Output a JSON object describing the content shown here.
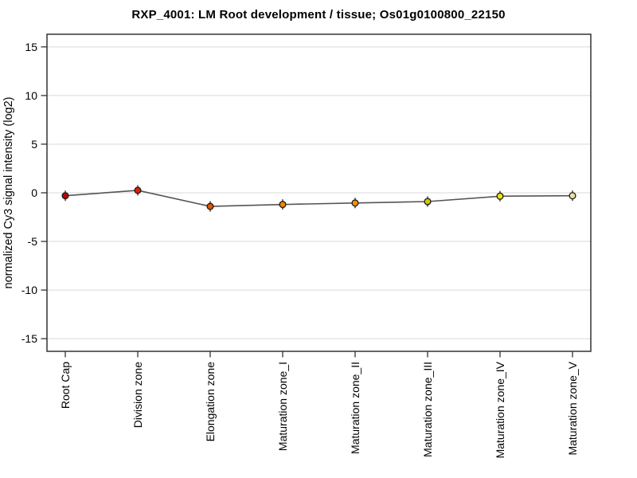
{
  "page": {
    "background_color": "#ffffff"
  },
  "chart_data": {
    "type": "line",
    "title": "RXP_4001: LM Root development / tissue; Os01g0100800_22150",
    "xlabel": "",
    "ylabel": "normalized Cy3 signal intensity (log2)",
    "categories": [
      "Root Cap",
      "Division zone",
      "Elongation zone",
      "Maturation zone_I",
      "Maturation zone_II",
      "Maturation zone_III",
      "Maturation zone_IV",
      "Maturation zone_V"
    ],
    "series": [
      {
        "name": "normalized Cy3 signal intensity (log2)",
        "values": [
          -0.3,
          0.25,
          -1.4,
          -1.2,
          -1.05,
          -0.9,
          -0.35,
          -0.3
        ]
      }
    ],
    "point_colors": [
      "#c40000",
      "#dd2200",
      "#e25400",
      "#ee8400",
      "#f09200",
      "#d4c800",
      "#ece600",
      "#e8e4a8"
    ],
    "yticks": [
      -15,
      -10,
      -5,
      0,
      5,
      10,
      15
    ],
    "ylim": [
      -16.3,
      16.3
    ],
    "grid": "horizontal gridlines at major y ticks",
    "legend": "none",
    "error_bars": "small vertical bar through each point",
    "colors": {
      "gridline": "#d9d9d9",
      "plot_border": "#333333",
      "tick": "#333333",
      "series_line": "#555555",
      "marker_outline": "#1a1a1a",
      "error_bar": "#111111",
      "text": "#000000"
    }
  }
}
